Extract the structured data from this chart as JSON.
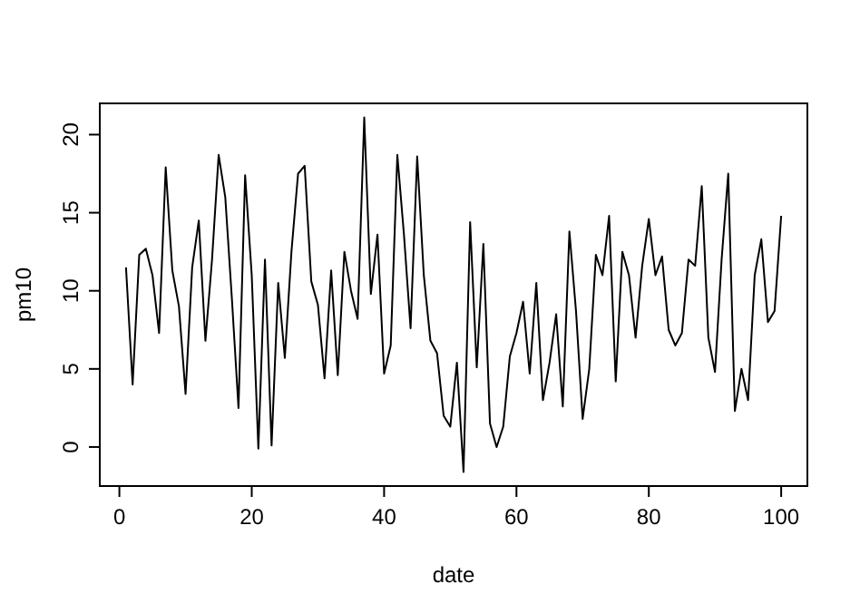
{
  "chart_data": {
    "type": "line",
    "xlabel": "date",
    "ylabel": "pm10",
    "xlim": [
      -2.96,
      103.96
    ],
    "ylim": [
      -2.5,
      22
    ],
    "xticks": [
      0,
      20,
      40,
      60,
      80,
      100
    ],
    "yticks": [
      0,
      5,
      10,
      15,
      20
    ],
    "color": "#000000",
    "grid": false,
    "x": [
      1,
      2,
      3,
      4,
      5,
      6,
      7,
      8,
      9,
      10,
      11,
      12,
      13,
      14,
      15,
      16,
      17,
      18,
      19,
      20,
      21,
      22,
      23,
      24,
      25,
      26,
      27,
      28,
      29,
      30,
      31,
      32,
      33,
      34,
      35,
      36,
      37,
      38,
      39,
      40,
      41,
      42,
      43,
      44,
      45,
      46,
      47,
      48,
      49,
      50,
      51,
      52,
      53,
      54,
      55,
      56,
      57,
      58,
      59,
      60,
      61,
      62,
      63,
      64,
      65,
      66,
      67,
      68,
      69,
      70,
      71,
      72,
      73,
      74,
      75,
      76,
      77,
      78,
      79,
      80,
      81,
      82,
      83,
      84,
      85,
      86,
      87,
      88,
      89,
      90,
      91,
      92,
      93,
      94,
      95,
      96,
      97,
      98,
      99,
      100
    ],
    "values": [
      11.5,
      4.0,
      12.3,
      12.7,
      11.0,
      7.3,
      17.9,
      11.3,
      9.0,
      3.4,
      11.5,
      14.5,
      6.8,
      12.0,
      18.7,
      16.0,
      9.5,
      2.5,
      17.4,
      11.0,
      -0.1,
      12.0,
      0.1,
      10.5,
      5.7,
      12.5,
      17.5,
      18.0,
      10.6,
      9.1,
      4.4,
      11.3,
      4.6,
      12.5,
      10.0,
      8.2,
      21.1,
      9.8,
      13.6,
      4.7,
      6.5,
      18.7,
      13.6,
      7.6,
      18.6,
      11.0,
      6.8,
      6.0,
      2.0,
      1.3,
      5.4,
      -1.6,
      14.4,
      5.1,
      13.0,
      1.5,
      0.0,
      1.3,
      5.8,
      7.3,
      9.3,
      4.7,
      10.5,
      3.0,
      5.4,
      8.5,
      2.6,
      13.8,
      8.7,
      1.8,
      5.0,
      12.3,
      11.0,
      14.8,
      4.2,
      12.5,
      11.0,
      7.0,
      11.6,
      14.6,
      11.0,
      12.2,
      7.5,
      6.5,
      7.3,
      12.0,
      11.6,
      16.7,
      7.0,
      4.8,
      12.0,
      17.5,
      2.3,
      5.0,
      3.0,
      11.0,
      13.3,
      8.0,
      8.7,
      14.8
    ]
  }
}
